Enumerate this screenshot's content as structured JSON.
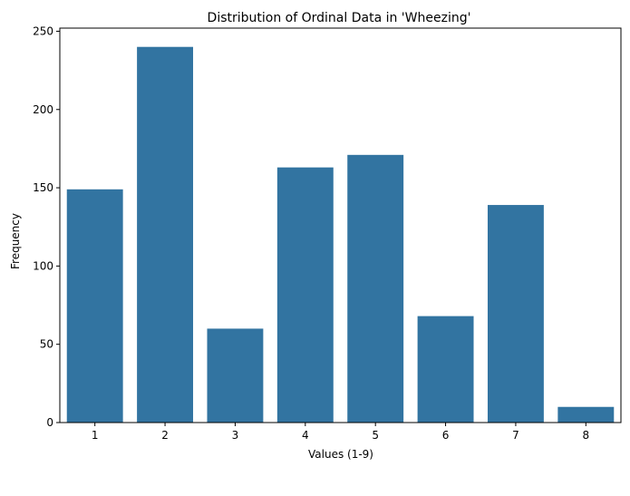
{
  "chart_data": {
    "type": "bar",
    "title": "Distribution of Ordinal Data in 'Wheezing'",
    "xlabel": "Values (1-9)",
    "ylabel": "Frequency",
    "categories": [
      "1",
      "2",
      "3",
      "4",
      "5",
      "6",
      "7",
      "8"
    ],
    "values": [
      149,
      240,
      60,
      163,
      171,
      68,
      139,
      10
    ],
    "ylim": [
      0,
      252
    ],
    "yticks": [
      0,
      50,
      100,
      150,
      200,
      250
    ],
    "grid": false,
    "bar_color": "#3274a1"
  }
}
